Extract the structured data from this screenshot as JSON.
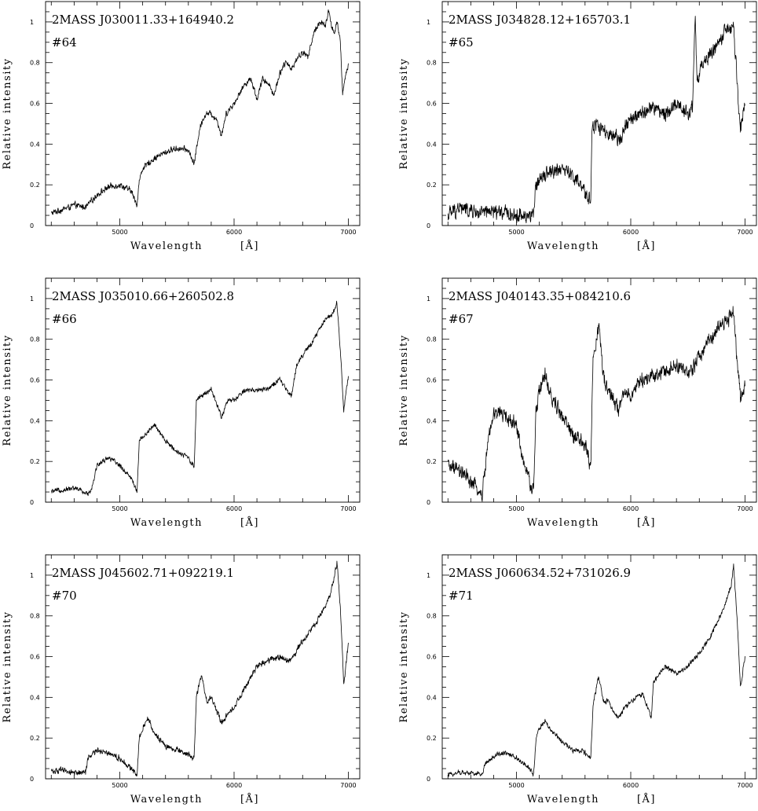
{
  "chart_data": [
    {
      "type": "line",
      "title": "2MASS  J030011.33+164940.2",
      "id_label": "#64",
      "xlabel": "Wavelength",
      "xunit": "[Å]",
      "ylabel": "Relative intensity",
      "xlim": [
        4350,
        7100
      ],
      "ylim": [
        0,
        1.1
      ],
      "xticks": [
        5000,
        6000,
        7000
      ],
      "yticks": [
        0,
        0.2,
        0.4,
        0.6,
        0.8,
        1
      ],
      "ytick_labels": [
        "0",
        "0.2",
        "0.4",
        "0.6",
        "0.8",
        "1"
      ],
      "noise": 0.012,
      "series": [
        {
          "x": [
            4400,
            4500,
            4600,
            4700,
            4800,
            4900,
            5000,
            5100,
            5150,
            5170,
            5200,
            5300,
            5400,
            5500,
            5600,
            5650,
            5700,
            5750,
            5800,
            5850,
            5890,
            5930,
            6000,
            6100,
            6150,
            6200,
            6250,
            6300,
            6350,
            6400,
            6450,
            6500,
            6550,
            6600,
            6650,
            6700,
            6750,
            6800,
            6830,
            6850,
            6880,
            6900,
            6930,
            6950,
            6980,
            7000
          ],
          "y": [
            0.06,
            0.08,
            0.1,
            0.09,
            0.15,
            0.19,
            0.2,
            0.17,
            0.1,
            0.22,
            0.28,
            0.33,
            0.36,
            0.38,
            0.37,
            0.3,
            0.48,
            0.55,
            0.55,
            0.52,
            0.44,
            0.55,
            0.6,
            0.7,
            0.72,
            0.62,
            0.72,
            0.7,
            0.64,
            0.75,
            0.8,
            0.77,
            0.82,
            0.85,
            0.83,
            0.95,
            1.0,
            0.98,
            1.06,
            0.98,
            0.95,
            1.0,
            0.9,
            0.65,
            0.75,
            0.79
          ]
        }
      ]
    },
    {
      "type": "line",
      "title": "2MASS  J034828.12+165703.1",
      "id_label": "#65",
      "xlabel": "Wavelength",
      "xunit": "[Å]",
      "ylabel": "Relative intensity",
      "xlim": [
        4350,
        7100
      ],
      "ylim": [
        0,
        1.1
      ],
      "xticks": [
        5000,
        6000,
        7000
      ],
      "yticks": [
        0,
        0.2,
        0.4,
        0.6,
        0.8,
        1
      ],
      "ytick_labels": [
        "0",
        "0.2",
        "0.4",
        "0.6",
        "0.8",
        "1"
      ],
      "noise": 0.03,
      "series": [
        {
          "x": [
            4400,
            4500,
            4600,
            4700,
            4800,
            4900,
            5000,
            5100,
            5150,
            5170,
            5200,
            5300,
            5400,
            5500,
            5600,
            5650,
            5660,
            5700,
            5800,
            5890,
            5950,
            6000,
            6100,
            6200,
            6300,
            6400,
            6500,
            6540,
            6563,
            6580,
            6600,
            6700,
            6800,
            6850,
            6880,
            6900,
            6930,
            6960,
            7000
          ],
          "y": [
            0.05,
            0.09,
            0.07,
            0.06,
            0.07,
            0.06,
            0.05,
            0.05,
            0.05,
            0.19,
            0.24,
            0.27,
            0.28,
            0.24,
            0.16,
            0.12,
            0.48,
            0.5,
            0.44,
            0.42,
            0.48,
            0.52,
            0.55,
            0.58,
            0.55,
            0.6,
            0.55,
            0.58,
            1.05,
            0.7,
            0.75,
            0.85,
            0.92,
            0.97,
            0.95,
            0.98,
            0.7,
            0.48,
            0.6
          ]
        }
      ]
    },
    {
      "type": "line",
      "title": "2MASS  J035010.66+260502.8",
      "id_label": "#66",
      "xlabel": "Wavelength",
      "xunit": "[Å]",
      "ylabel": "Relative intensity",
      "xlim": [
        4350,
        7100
      ],
      "ylim": [
        0,
        1.1
      ],
      "xticks": [
        5000,
        6000,
        7000
      ],
      "yticks": [
        0,
        0.2,
        0.4,
        0.6,
        0.8,
        1
      ],
      "ytick_labels": [
        "0",
        "0.2",
        "0.4",
        "0.6",
        "0.8",
        "1"
      ],
      "noise": 0.01,
      "series": [
        {
          "x": [
            4400,
            4500,
            4600,
            4650,
            4700,
            4750,
            4800,
            4900,
            5000,
            5100,
            5150,
            5170,
            5200,
            5300,
            5400,
            5500,
            5600,
            5650,
            5670,
            5700,
            5800,
            5890,
            5950,
            6000,
            6100,
            6200,
            6300,
            6400,
            6500,
            6550,
            6600,
            6700,
            6800,
            6850,
            6880,
            6900,
            6930,
            6960,
            7000
          ],
          "y": [
            0.05,
            0.06,
            0.07,
            0.06,
            0.04,
            0.06,
            0.18,
            0.22,
            0.18,
            0.12,
            0.05,
            0.3,
            0.32,
            0.38,
            0.3,
            0.25,
            0.22,
            0.17,
            0.5,
            0.52,
            0.55,
            0.42,
            0.5,
            0.5,
            0.55,
            0.55,
            0.56,
            0.6,
            0.52,
            0.68,
            0.72,
            0.8,
            0.9,
            0.92,
            0.95,
            0.98,
            0.75,
            0.45,
            0.62
          ]
        }
      ]
    },
    {
      "type": "line",
      "title": "2MASS  J040143.35+084210.6",
      "id_label": "#67",
      "xlabel": "Wavelength",
      "xunit": "[Å]",
      "ylabel": "Relative intensity",
      "xlim": [
        4350,
        7100
      ],
      "ylim": [
        0,
        1.1
      ],
      "xticks": [
        5000,
        6000,
        7000
      ],
      "yticks": [
        0,
        0.2,
        0.4,
        0.6,
        0.8,
        1
      ],
      "ytick_labels": [
        "0",
        "0.2",
        "0.4",
        "0.6",
        "0.8",
        "1"
      ],
      "noise": 0.03,
      "series": [
        {
          "x": [
            4400,
            4500,
            4600,
            4700,
            4750,
            4800,
            4850,
            4900,
            5000,
            5050,
            5100,
            5150,
            5170,
            5200,
            5250,
            5300,
            5400,
            5500,
            5600,
            5650,
            5670,
            5700,
            5720,
            5760,
            5800,
            5890,
            5950,
            6000,
            6100,
            6200,
            6300,
            6400,
            6500,
            6600,
            6700,
            6800,
            6850,
            6880,
            6900,
            6930,
            6960,
            7000
          ],
          "y": [
            0.18,
            0.15,
            0.1,
            0.03,
            0.3,
            0.42,
            0.45,
            0.42,
            0.38,
            0.22,
            0.12,
            0.05,
            0.45,
            0.55,
            0.62,
            0.52,
            0.42,
            0.32,
            0.28,
            0.18,
            0.7,
            0.8,
            0.88,
            0.62,
            0.55,
            0.45,
            0.55,
            0.52,
            0.6,
            0.62,
            0.64,
            0.68,
            0.62,
            0.72,
            0.8,
            0.88,
            0.9,
            0.92,
            0.95,
            0.7,
            0.5,
            0.58
          ]
        }
      ]
    },
    {
      "type": "line",
      "title": "2MASS  J045602.71+092219.1",
      "id_label": "#70",
      "xlabel": "Wavelength",
      "xunit": "[Å]",
      "ylabel": "Relative intensity",
      "xlim": [
        4350,
        7100
      ],
      "ylim": [
        0,
        1.1
      ],
      "xticks": [
        5000,
        6000,
        7000
      ],
      "yticks": [
        0,
        0.2,
        0.4,
        0.6,
        0.8,
        1
      ],
      "ytick_labels": [
        "0",
        "0.2",
        "0.4",
        "0.6",
        "0.8",
        "1"
      ],
      "noise": 0.012,
      "series": [
        {
          "x": [
            4400,
            4500,
            4600,
            4700,
            4720,
            4800,
            4900,
            5000,
            5100,
            5150,
            5170,
            5200,
            5250,
            5300,
            5400,
            5500,
            5600,
            5650,
            5670,
            5700,
            5720,
            5760,
            5800,
            5890,
            5950,
            6000,
            6100,
            6200,
            6300,
            6400,
            6500,
            6600,
            6700,
            6800,
            6850,
            6880,
            6900,
            6930,
            6960,
            7000
          ],
          "y": [
            0.04,
            0.04,
            0.03,
            0.03,
            0.1,
            0.14,
            0.13,
            0.1,
            0.05,
            0.02,
            0.2,
            0.25,
            0.3,
            0.22,
            0.16,
            0.14,
            0.12,
            0.1,
            0.4,
            0.48,
            0.5,
            0.38,
            0.4,
            0.28,
            0.32,
            0.35,
            0.45,
            0.55,
            0.58,
            0.6,
            0.58,
            0.68,
            0.75,
            0.85,
            0.92,
            1.0,
            1.06,
            0.85,
            0.45,
            0.67
          ]
        }
      ]
    },
    {
      "type": "line",
      "title": "2MASS  J060634.52+731026.9",
      "id_label": "#71",
      "xlabel": "Wavelength",
      "xunit": "[Å]",
      "ylabel": "Relative intensity",
      "xlim": [
        4350,
        7100
      ],
      "ylim": [
        0,
        1.1
      ],
      "xticks": [
        5000,
        6000,
        7000
      ],
      "yticks": [
        0,
        0.2,
        0.4,
        0.6,
        0.8,
        1
      ],
      "ytick_labels": [
        "0",
        "0.2",
        "0.4",
        "0.6",
        "0.8",
        "1"
      ],
      "noise": 0.01,
      "series": [
        {
          "x": [
            4400,
            4500,
            4600,
            4700,
            4720,
            4800,
            4900,
            5000,
            5100,
            5150,
            5170,
            5200,
            5250,
            5300,
            5400,
            5500,
            5600,
            5650,
            5670,
            5700,
            5720,
            5760,
            5800,
            5890,
            5950,
            6000,
            6100,
            6180,
            6200,
            6300,
            6400,
            6500,
            6600,
            6700,
            6800,
            6850,
            6880,
            6900,
            6930,
            6960,
            7000
          ],
          "y": [
            0.02,
            0.03,
            0.03,
            0.02,
            0.07,
            0.11,
            0.13,
            0.1,
            0.06,
            0.02,
            0.2,
            0.25,
            0.28,
            0.24,
            0.18,
            0.14,
            0.13,
            0.1,
            0.35,
            0.45,
            0.5,
            0.38,
            0.38,
            0.3,
            0.35,
            0.38,
            0.42,
            0.3,
            0.48,
            0.55,
            0.52,
            0.55,
            0.62,
            0.7,
            0.82,
            0.9,
            0.95,
            1.05,
            0.8,
            0.45,
            0.6
          ]
        }
      ]
    }
  ]
}
